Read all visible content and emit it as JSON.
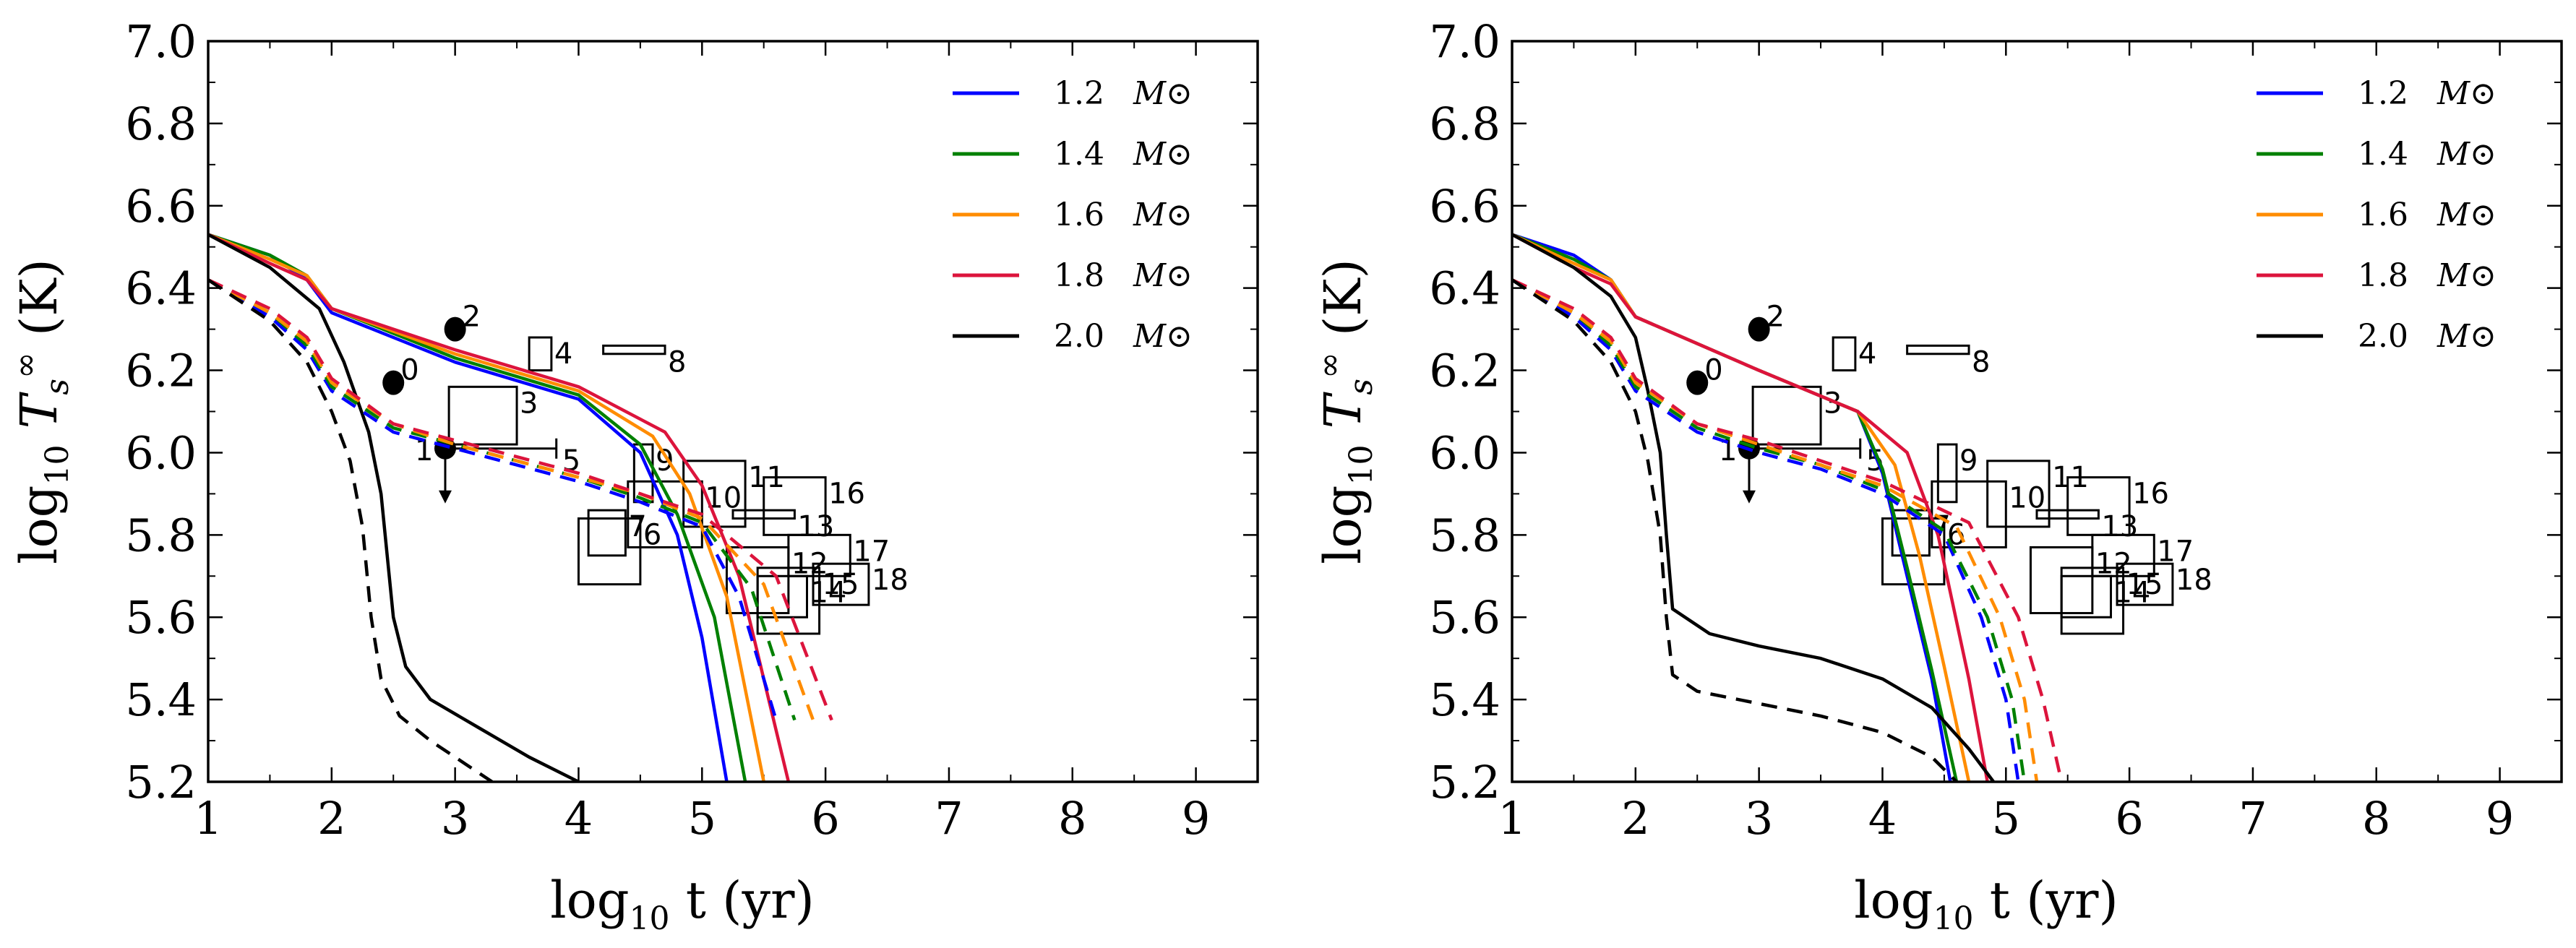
{
  "chart_data": [
    {
      "type": "line",
      "xlabel": "log10 t (yr)",
      "ylabel": "log10 Ts∞ (K)",
      "xlim": [
        1,
        9.5
      ],
      "ylim": [
        5.2,
        7.0
      ],
      "xticks": [
        "1",
        "2",
        "3",
        "4",
        "5",
        "6",
        "7",
        "8",
        "9"
      ],
      "yticks": [
        "5.2",
        "5.4",
        "5.6",
        "5.8",
        "6.0",
        "6.2",
        "6.4",
        "6.6",
        "6.8",
        "7.0"
      ],
      "legend_position": "top-right",
      "series": [
        {
          "name": "1.2 M⊙",
          "color": "#0000ff",
          "style": "solid",
          "x": [
            1.0,
            1.5,
            1.8,
            2.0,
            3.0,
            4.0,
            4.5,
            4.8,
            5.0,
            5.2
          ],
          "y": [
            6.53,
            6.48,
            6.42,
            6.34,
            6.22,
            6.13,
            6.0,
            5.8,
            5.55,
            5.2
          ]
        },
        {
          "name": "1.4 M⊙",
          "color": "#008000",
          "style": "solid",
          "x": [
            1.0,
            1.5,
            1.8,
            2.0,
            3.0,
            4.0,
            4.5,
            4.8,
            5.1,
            5.35
          ],
          "y": [
            6.53,
            6.48,
            6.43,
            6.35,
            6.23,
            6.14,
            6.02,
            5.85,
            5.6,
            5.2
          ]
        },
        {
          "name": "1.6 M⊙",
          "color": "#ff8c00",
          "style": "solid",
          "x": [
            1.0,
            1.5,
            1.8,
            2.0,
            3.0,
            4.0,
            4.6,
            4.9,
            5.2,
            5.5
          ],
          "y": [
            6.53,
            6.47,
            6.43,
            6.35,
            6.24,
            6.15,
            6.04,
            5.9,
            5.65,
            5.2
          ]
        },
        {
          "name": "1.8 M⊙",
          "color": "#dc143c",
          "style": "solid",
          "x": [
            1.0,
            1.5,
            1.8,
            2.0,
            3.0,
            4.0,
            4.7,
            5.0,
            5.3,
            5.7
          ],
          "y": [
            6.53,
            6.46,
            6.42,
            6.35,
            6.25,
            6.16,
            6.05,
            5.92,
            5.7,
            5.2
          ]
        },
        {
          "name": "2.0 M⊙",
          "color": "#000000",
          "style": "solid",
          "x": [
            1.0,
            1.5,
            1.9,
            2.1,
            2.3,
            2.4,
            2.45,
            2.5,
            2.6,
            2.8,
            3.2,
            3.6,
            4.0
          ],
          "y": [
            6.53,
            6.45,
            6.35,
            6.22,
            6.05,
            5.9,
            5.75,
            5.6,
            5.48,
            5.4,
            5.33,
            5.26,
            5.2
          ]
        },
        {
          "name": "",
          "color": "#0000ff",
          "style": "dashed",
          "x": [
            1.0,
            1.5,
            1.8,
            2.0,
            2.5,
            3.0,
            4.0,
            4.5,
            5.0,
            5.3,
            5.6
          ],
          "y": [
            6.42,
            6.33,
            6.25,
            6.15,
            6.05,
            6.01,
            5.93,
            5.88,
            5.82,
            5.65,
            5.35
          ]
        },
        {
          "name": "",
          "color": "#008000",
          "style": "dashed",
          "x": [
            1.0,
            1.5,
            1.8,
            2.0,
            2.5,
            3.0,
            4.0,
            4.5,
            5.0,
            5.4,
            5.75
          ],
          "y": [
            6.42,
            6.34,
            6.26,
            6.16,
            6.06,
            6.02,
            5.94,
            5.89,
            5.83,
            5.67,
            5.35
          ]
        },
        {
          "name": "",
          "color": "#ff8c00",
          "style": "dashed",
          "x": [
            1.0,
            1.5,
            1.8,
            2.0,
            2.5,
            3.0,
            4.0,
            4.5,
            5.0,
            5.5,
            5.9
          ],
          "y": [
            6.42,
            6.34,
            6.27,
            6.17,
            6.07,
            6.02,
            5.94,
            5.9,
            5.84,
            5.68,
            5.35
          ]
        },
        {
          "name": "",
          "color": "#dc143c",
          "style": "dashed",
          "x": [
            1.0,
            1.5,
            1.8,
            2.0,
            2.5,
            3.0,
            4.0,
            4.5,
            5.0,
            5.6,
            6.05
          ],
          "y": [
            6.42,
            6.35,
            6.28,
            6.18,
            6.07,
            6.03,
            5.95,
            5.9,
            5.85,
            5.7,
            5.35
          ]
        },
        {
          "name": "",
          "color": "#000000",
          "style": "dashed",
          "x": [
            1.0,
            1.5,
            1.8,
            2.0,
            2.15,
            2.25,
            2.32,
            2.4,
            2.55,
            2.8,
            3.1,
            3.3
          ],
          "y": [
            6.42,
            6.32,
            6.22,
            6.1,
            5.98,
            5.82,
            5.6,
            5.45,
            5.36,
            5.3,
            5.24,
            5.2
          ]
        }
      ]
    },
    {
      "type": "line",
      "xlabel": "log10 t (yr)",
      "ylabel": "log10 Ts∞ (K)",
      "xlim": [
        1,
        9.5
      ],
      "ylim": [
        5.2,
        7.0
      ],
      "xticks": [
        "1",
        "2",
        "3",
        "4",
        "5",
        "6",
        "7",
        "8",
        "9"
      ],
      "yticks": [
        "5.2",
        "5.4",
        "5.6",
        "5.8",
        "6.0",
        "6.2",
        "6.4",
        "6.6",
        "6.8",
        "7.0"
      ],
      "legend_position": "top-right",
      "series": [
        {
          "name": "1.2 M⊙",
          "color": "#0000ff",
          "style": "solid",
          "x": [
            1.0,
            1.5,
            1.8,
            2.0,
            3.0,
            3.8,
            4.0,
            4.2,
            4.4,
            4.55
          ],
          "y": [
            6.53,
            6.48,
            6.42,
            6.33,
            6.2,
            6.1,
            5.95,
            5.7,
            5.45,
            5.2
          ]
        },
        {
          "name": "1.4 M⊙",
          "color": "#008000",
          "style": "solid",
          "x": [
            1.0,
            1.5,
            1.8,
            2.0,
            3.0,
            3.8,
            4.0,
            4.2,
            4.4,
            4.6
          ],
          "y": [
            6.53,
            6.47,
            6.42,
            6.33,
            6.2,
            6.1,
            5.96,
            5.72,
            5.47,
            5.2
          ]
        },
        {
          "name": "1.6 M⊙",
          "color": "#ff8c00",
          "style": "solid",
          "x": [
            1.0,
            1.5,
            1.8,
            2.0,
            3.0,
            3.8,
            4.1,
            4.3,
            4.5,
            4.7
          ],
          "y": [
            6.53,
            6.46,
            6.42,
            6.33,
            6.2,
            6.1,
            5.97,
            5.75,
            5.48,
            5.2
          ]
        },
        {
          "name": "1.8 M⊙",
          "color": "#dc143c",
          "style": "solid",
          "x": [
            1.0,
            1.5,
            1.8,
            2.0,
            3.0,
            3.8,
            4.2,
            4.45,
            4.7,
            4.85
          ],
          "y": [
            6.53,
            6.45,
            6.41,
            6.33,
            6.2,
            6.1,
            6.0,
            5.8,
            5.45,
            5.2
          ]
        },
        {
          "name": "2.0 M⊙",
          "color": "#000000",
          "style": "solid",
          "x": [
            1.0,
            1.5,
            1.8,
            2.0,
            2.1,
            2.2,
            2.25,
            2.3,
            2.6,
            3.0,
            3.5,
            4.0,
            4.4,
            4.7,
            4.9
          ],
          "y": [
            6.53,
            6.45,
            6.38,
            6.28,
            6.15,
            6.0,
            5.8,
            5.62,
            5.56,
            5.53,
            5.5,
            5.45,
            5.38,
            5.28,
            5.2
          ]
        },
        {
          "name": "",
          "color": "#0000ff",
          "style": "dashed",
          "x": [
            1.0,
            1.5,
            1.8,
            2.0,
            2.5,
            3.0,
            3.5,
            4.0,
            4.5,
            4.8,
            5.0,
            5.1
          ],
          "y": [
            6.42,
            6.33,
            6.25,
            6.15,
            6.05,
            6.0,
            5.96,
            5.9,
            5.8,
            5.6,
            5.4,
            5.2
          ]
        },
        {
          "name": "",
          "color": "#008000",
          "style": "dashed",
          "x": [
            1.0,
            1.5,
            1.8,
            2.0,
            2.5,
            3.0,
            3.5,
            4.0,
            4.5,
            4.85,
            5.05,
            5.15
          ],
          "y": [
            6.42,
            6.34,
            6.26,
            6.16,
            6.06,
            6.01,
            5.97,
            5.91,
            5.81,
            5.6,
            5.4,
            5.2
          ]
        },
        {
          "name": "",
          "color": "#ff8c00",
          "style": "dashed",
          "x": [
            1.0,
            1.5,
            1.8,
            2.0,
            2.5,
            3.0,
            3.5,
            4.0,
            4.6,
            4.95,
            5.15,
            5.25
          ],
          "y": [
            6.42,
            6.34,
            6.27,
            6.17,
            6.07,
            6.02,
            5.97,
            5.92,
            5.82,
            5.6,
            5.4,
            5.2
          ]
        },
        {
          "name": "",
          "color": "#dc143c",
          "style": "dashed",
          "x": [
            1.0,
            1.5,
            1.8,
            2.0,
            2.5,
            3.0,
            3.5,
            4.0,
            4.7,
            5.1,
            5.3,
            5.45
          ],
          "y": [
            6.42,
            6.35,
            6.28,
            6.18,
            6.07,
            6.03,
            5.98,
            5.93,
            5.83,
            5.6,
            5.4,
            5.2
          ]
        },
        {
          "name": "",
          "color": "#000000",
          "style": "dashed",
          "x": [
            1.0,
            1.5,
            1.8,
            2.0,
            2.1,
            2.2,
            2.25,
            2.3,
            2.5,
            3.0,
            3.5,
            4.0,
            4.4,
            4.6
          ],
          "y": [
            6.42,
            6.32,
            6.22,
            6.1,
            5.98,
            5.8,
            5.6,
            5.46,
            5.42,
            5.39,
            5.36,
            5.32,
            5.26,
            5.2
          ]
        }
      ]
    }
  ],
  "sources": [
    {
      "id": "0",
      "kind": "point",
      "x": 2.5,
      "y": 6.17
    },
    {
      "id": "1",
      "kind": "upper-limit",
      "x": 2.92,
      "y": 6.01
    },
    {
      "id": "2",
      "kind": "point",
      "x": 3.0,
      "y": 6.3
    },
    {
      "id": "3",
      "kind": "box",
      "x": [
        2.95,
        3.5
      ],
      "y": [
        6.02,
        6.16
      ]
    },
    {
      "id": "4",
      "kind": "box",
      "x": [
        3.6,
        3.78
      ],
      "y": [
        6.2,
        6.28
      ]
    },
    {
      "id": "5",
      "kind": "limit-bar",
      "x": [
        2.9,
        3.82
      ],
      "y": 6.01
    },
    {
      "id": "6",
      "kind": "box",
      "x": [
        4.0,
        4.5
      ],
      "y": [
        5.68,
        5.84
      ]
    },
    {
      "id": "7",
      "kind": "box",
      "x": [
        4.08,
        4.38
      ],
      "y": [
        5.75,
        5.86
      ]
    },
    {
      "id": "8",
      "kind": "box",
      "x": [
        4.2,
        4.7
      ],
      "y": [
        6.24,
        6.26
      ]
    },
    {
      "id": "9",
      "kind": "box",
      "x": [
        4.45,
        4.6
      ],
      "y": [
        5.88,
        6.02
      ]
    },
    {
      "id": "10",
      "kind": "box",
      "x": [
        4.4,
        5.0
      ],
      "y": [
        5.77,
        5.93
      ]
    },
    {
      "id": "11",
      "kind": "box",
      "x": [
        4.85,
        5.35
      ],
      "y": [
        5.82,
        5.98
      ]
    },
    {
      "id": "12",
      "kind": "box",
      "x": [
        5.2,
        5.7
      ],
      "y": [
        5.61,
        5.77
      ]
    },
    {
      "id": "13",
      "kind": "box",
      "x": [
        5.25,
        5.75
      ],
      "y": [
        5.84,
        5.86
      ]
    },
    {
      "id": "14",
      "kind": "box",
      "x": [
        5.45,
        5.85
      ],
      "y": [
        5.6,
        5.7
      ]
    },
    {
      "id": "15",
      "kind": "box",
      "x": [
        5.45,
        5.95
      ],
      "y": [
        5.56,
        5.72
      ]
    },
    {
      "id": "16",
      "kind": "box",
      "x": [
        5.5,
        6.0
      ],
      "y": [
        5.8,
        5.94
      ]
    },
    {
      "id": "17",
      "kind": "box",
      "x": [
        5.7,
        6.2
      ],
      "y": [
        5.7,
        5.8
      ]
    },
    {
      "id": "18",
      "kind": "box",
      "x": [
        5.9,
        6.35
      ],
      "y": [
        5.63,
        5.73
      ]
    }
  ],
  "legend": [
    {
      "value": "1.2",
      "unit": "M⊙",
      "color": "#0000ff"
    },
    {
      "value": "1.4",
      "unit": "M⊙",
      "color": "#008000"
    },
    {
      "value": "1.6",
      "unit": "M⊙",
      "color": "#ff8c00"
    },
    {
      "value": "1.8",
      "unit": "M⊙",
      "color": "#dc143c"
    },
    {
      "value": "2.0",
      "unit": "M⊙",
      "color": "#000000"
    }
  ]
}
